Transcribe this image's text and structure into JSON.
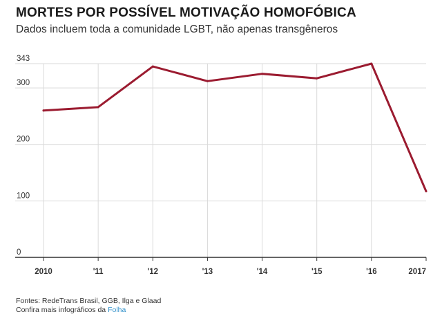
{
  "header": {
    "title": "MORTES POR POSSÍVEL MOTIVAÇÃO HOMOFÓBICA",
    "subtitle": "Dados incluem toda a comunidade LGBT, não apenas transgêneros"
  },
  "footer": {
    "sources": "Fontes: RedeTrans Brasil, GGB, Ilga e Glaad",
    "more_prefix": "Confira mais infográficos da ",
    "brand": "Folha"
  },
  "colors": {
    "line": "#9b1b30",
    "grid": "#d9d9d9",
    "axis": "#333333",
    "brand": "#2f8fc9"
  },
  "chart_data": {
    "type": "line",
    "title": "MORTES POR POSSÍVEL MOTIVAÇÃO HOMOFÓBICA",
    "subtitle": "Dados incluem toda a comunidade LGBT, não apenas transgêneros",
    "xlabel": "",
    "ylabel": "",
    "categories": [
      "2010",
      "'11",
      "'12",
      "'13",
      "'14",
      "'15",
      "'16",
      "2017"
    ],
    "series": [
      {
        "values": [
          260,
          266,
          338,
          312,
          325,
          317,
          343,
          117
        ]
      }
    ],
    "ylim": [
      0,
      343
    ],
    "yticks": [
      0,
      100,
      200,
      300,
      343
    ],
    "grid": true,
    "legend": "none"
  }
}
